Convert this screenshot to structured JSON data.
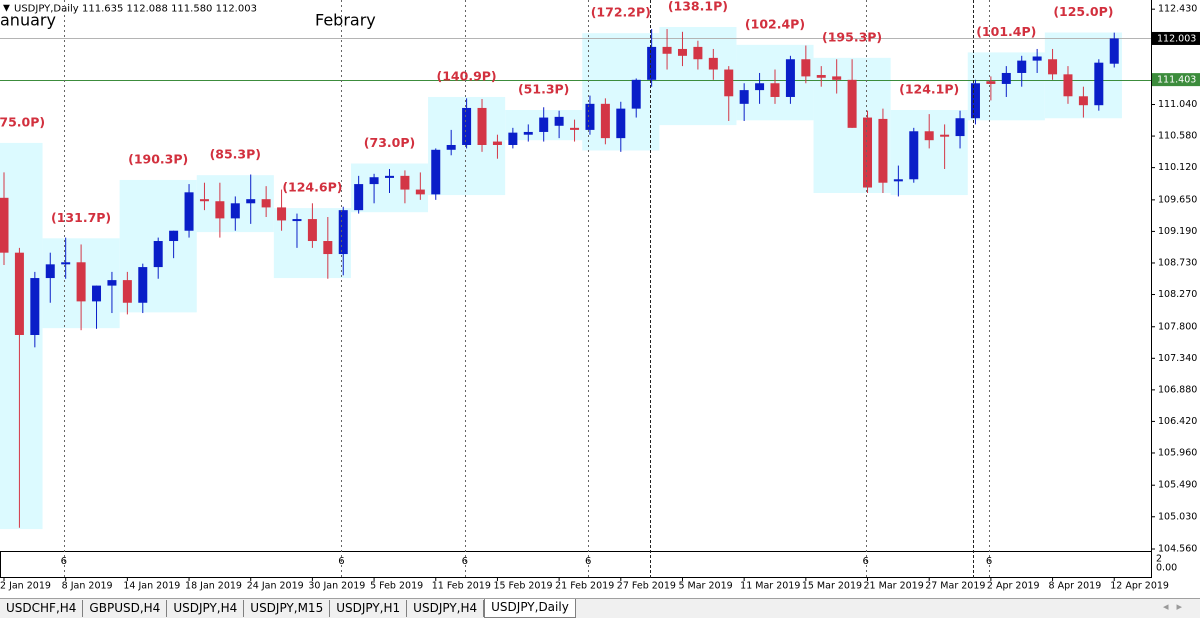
{
  "chart_data": {
    "type": "candlestick",
    "title": "USDJPY,Daily",
    "header_values": "111.635 112.088 111.580 112.003",
    "month_labels": [
      "anuary",
      "Febrary"
    ],
    "categories": [
      "2 Jan 2019",
      null,
      null,
      null,
      "8 Jan 2019",
      null,
      null,
      null,
      "14 Jan 2019",
      null,
      null,
      null,
      "18 Jan 2019",
      null,
      null,
      null,
      "24 Jan 2019",
      null,
      null,
      null,
      "30 Jan 2019",
      null,
      null,
      null,
      "5 Feb 2019",
      null,
      null,
      null,
      "11 Feb 2019",
      null,
      null,
      null,
      "15 Feb 2019",
      null,
      null,
      null,
      "21 Feb 2019",
      null,
      null,
      null,
      "27 Feb 2019",
      null,
      null,
      null,
      "5 Mar 2019",
      null,
      null,
      null,
      "11 Mar 2019",
      null,
      null,
      null,
      "15 Mar 2019",
      null,
      null,
      null,
      "21 Mar 2019",
      null,
      null,
      null,
      "27 Mar 2019",
      null,
      null,
      null,
      "2 Apr 2019",
      null,
      null,
      null,
      "8 Apr 2019",
      null,
      null,
      null,
      "12 Apr 2019"
    ],
    "open": [
      109.68,
      108.88,
      107.68,
      108.51,
      108.71,
      108.74,
      108.17,
      108.4,
      108.48,
      108.15,
      108.67,
      109.05,
      109.2,
      109.66,
      109.63,
      109.38,
      109.6,
      109.66,
      109.54,
      109.35,
      109.37,
      109.05,
      108.86,
      109.5,
      109.88,
      109.97,
      110.0,
      109.8,
      109.73,
      110.38,
      110.45,
      110.99,
      110.5,
      110.45,
      110.6,
      110.64,
      110.73,
      110.7,
      110.67,
      111.05,
      110.55,
      110.98,
      111.4,
      111.88,
      111.85,
      111.88,
      111.72,
      111.55,
      111.05,
      111.25,
      111.35,
      111.15,
      111.7,
      111.47,
      111.45,
      111.4,
      110.85,
      110.83,
      109.92,
      109.95,
      110.65,
      110.6,
      110.58,
      110.84,
      111.38,
      111.34,
      111.5,
      111.68,
      111.7,
      111.48,
      111.16,
      111.03,
      111.635
    ],
    "high": [
      110.05,
      108.95,
      108.6,
      108.88,
      109.1,
      109.0,
      108.4,
      108.6,
      108.6,
      108.72,
      109.1,
      109.2,
      109.88,
      109.9,
      109.9,
      109.7,
      110.02,
      109.85,
      109.8,
      109.45,
      109.6,
      109.4,
      109.55,
      110.0,
      110.03,
      110.1,
      110.08,
      110.05,
      110.4,
      110.67,
      111.13,
      111.12,
      110.6,
      110.7,
      110.75,
      111.0,
      110.95,
      110.82,
      111.17,
      111.13,
      111.08,
      111.42,
      112.14,
      112.14,
      112.1,
      111.97,
      111.85,
      111.6,
      111.35,
      111.5,
      111.55,
      111.75,
      111.9,
      111.6,
      111.7,
      111.7,
      110.95,
      110.98,
      110.15,
      110.7,
      110.9,
      110.75,
      110.95,
      111.4,
      111.45,
      111.6,
      111.75,
      111.85,
      111.85,
      111.6,
      111.3,
      111.7,
      112.088
    ],
    "low": [
      108.7,
      104.87,
      107.5,
      108.15,
      108.5,
      107.75,
      107.77,
      108.0,
      107.98,
      108.0,
      108.5,
      108.8,
      109.1,
      109.5,
      109.1,
      109.2,
      109.3,
      109.4,
      109.2,
      108.95,
      108.95,
      108.5,
      108.55,
      109.45,
      109.6,
      109.75,
      109.6,
      109.65,
      109.65,
      110.3,
      110.4,
      110.35,
      110.25,
      110.4,
      110.5,
      110.5,
      110.55,
      110.5,
      110.6,
      110.46,
      110.35,
      110.85,
      111.3,
      111.55,
      111.6,
      111.55,
      111.4,
      110.8,
      110.8,
      111.05,
      111.05,
      111.05,
      111.35,
      111.3,
      111.2,
      110.7,
      109.75,
      109.75,
      109.7,
      109.9,
      110.4,
      110.1,
      110.4,
      110.75,
      111.1,
      111.15,
      111.3,
      111.5,
      111.4,
      111.05,
      110.85,
      110.95,
      111.58
    ],
    "close": [
      108.88,
      107.68,
      108.51,
      108.71,
      108.74,
      108.17,
      108.4,
      108.48,
      108.15,
      108.67,
      109.05,
      109.2,
      109.76,
      109.63,
      109.38,
      109.6,
      109.66,
      109.54,
      109.35,
      109.37,
      109.05,
      108.86,
      109.5,
      109.88,
      109.98,
      110.0,
      109.8,
      109.73,
      110.38,
      110.45,
      110.99,
      110.45,
      110.45,
      110.63,
      110.64,
      110.85,
      110.86,
      110.67,
      111.05,
      110.55,
      110.98,
      111.4,
      111.88,
      111.78,
      111.75,
      111.7,
      111.55,
      111.16,
      111.25,
      111.35,
      111.15,
      111.7,
      111.45,
      111.43,
      111.4,
      110.7,
      109.83,
      109.9,
      109.95,
      110.65,
      110.52,
      110.58,
      110.84,
      111.35,
      111.34,
      111.5,
      111.68,
      111.74,
      111.48,
      111.16,
      111.03,
      111.65,
      112.003
    ],
    "up_color": "#0a1ec8",
    "down_color": "#d33646",
    "zone_color": "#dcfaff",
    "zones": [
      {
        "label": "(75.0P)",
        "bars": [
          0,
          2
        ],
        "low": 104.85,
        "high": 110.48
      },
      {
        "label": "(131.7P)",
        "bars": [
          3,
          7
        ],
        "low": 107.78,
        "high": 109.09
      },
      {
        "label": "(190.3P)",
        "bars": [
          8,
          12
        ],
        "low": 108.01,
        "high": 109.94
      },
      {
        "label": "(85.3P)",
        "bars": [
          13,
          17
        ],
        "low": 109.18,
        "high": 110.01
      },
      {
        "label": "(124.6P)",
        "bars": [
          18,
          22
        ],
        "low": 108.51,
        "high": 109.53
      },
      {
        "label": "(73.0P)",
        "bars": [
          23,
          27
        ],
        "low": 109.47,
        "high": 110.18
      },
      {
        "label": "(140.9P)",
        "bars": [
          28,
          32
        ],
        "low": 109.72,
        "high": 111.15
      },
      {
        "label": "(51.3P)",
        "bars": [
          33,
          37
        ],
        "low": 110.52,
        "high": 110.96
      },
      {
        "label": "(172.2P)",
        "bars": [
          38,
          42
        ],
        "low": 110.37,
        "high": 112.08
      },
      {
        "label": "(138.1P)",
        "bars": [
          43,
          47
        ],
        "low": 110.74,
        "high": 112.17
      },
      {
        "label": "(102.4P)",
        "bars": [
          48,
          52
        ],
        "low": 110.81,
        "high": 111.91
      },
      {
        "label": "(195.3P)",
        "bars": [
          53,
          57
        ],
        "low": 109.75,
        "high": 111.72
      },
      {
        "label": "(124.1P)",
        "bars": [
          58,
          62
        ],
        "low": 109.72,
        "high": 110.96
      },
      {
        "label": "(101.4P)",
        "bars": [
          63,
          67
        ],
        "low": 110.81,
        "high": 111.8
      },
      {
        "label": "(125.0P)",
        "bars": [
          68,
          72
        ],
        "low": 110.84,
        "high": 112.09
      }
    ],
    "price_lines": [
      {
        "value": 112.003,
        "color": "#b4b4b4",
        "label_bg": "#000000"
      },
      {
        "value": 111.403,
        "color": "#3c8c3c",
        "label_bg": "#3c8c3c"
      }
    ],
    "ylim": [
      104.56,
      112.52
    ],
    "yticks": [
      {
        "value": 112.43,
        "label": "112.430"
      },
      {
        "value": 111.04,
        "label": "111.040"
      },
      {
        "value": 110.58,
        "label": "110.580"
      },
      {
        "value": 110.12,
        "label": "110.120"
      },
      {
        "value": 109.65,
        "label": "109.650"
      },
      {
        "value": 109.19,
        "label": "109.190"
      },
      {
        "value": 108.73,
        "label": "108.730"
      },
      {
        "value": 108.27,
        "label": "108.270"
      },
      {
        "value": 107.8,
        "label": "107.800"
      },
      {
        "value": 107.34,
        "label": "107.340"
      },
      {
        "value": 106.88,
        "label": "106.880"
      },
      {
        "value": 106.42,
        "label": "106.420"
      },
      {
        "value": 105.96,
        "label": "105.960"
      },
      {
        "value": 105.49,
        "label": "105.490"
      },
      {
        "value": 105.03,
        "label": "105.030"
      },
      {
        "value": 104.56,
        "label": "104.560"
      }
    ],
    "sub_labels": [
      "6",
      "6",
      "6",
      "6",
      "6",
      "6"
    ],
    "sub_scale": [
      "2",
      "0.00"
    ]
  },
  "tabs": [
    "USDCHF,H4",
    "GBPUSD,H4",
    "USDJPY,H4",
    "USDJPY,M15",
    "USDJPY,H1",
    "USDJPY,H4",
    "USDJPY,Daily"
  ]
}
